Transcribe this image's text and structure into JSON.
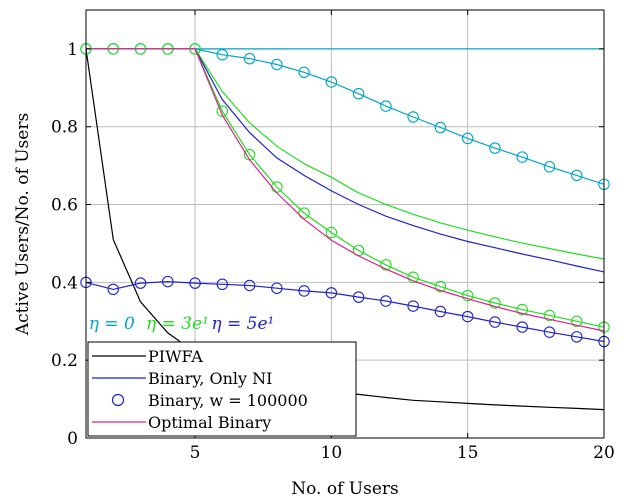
{
  "chart_data": {
    "type": "line",
    "xlabel": "No. of Users",
    "ylabel": "Active Users/No. of Users",
    "xlim": [
      1,
      20
    ],
    "ylim": [
      0,
      1.1
    ],
    "xticks": [
      5,
      10,
      15,
      20
    ],
    "yticks": [
      0,
      0.2,
      0.4,
      0.6,
      0.8,
      1
    ],
    "grid": true,
    "legend_position": "bottom-left",
    "annotations": [
      {
        "text": "η = 0",
        "color": "#00a6c8",
        "x": 1.1,
        "y": 0.28
      },
      {
        "text": "η = 3e¹",
        "color": "#22dd22",
        "x": 3.2,
        "y": 0.28
      },
      {
        "text": "η = 5e¹",
        "color": "#2222cc",
        "x": 5.6,
        "y": 0.28
      }
    ],
    "legend": [
      {
        "label": "PIWFA",
        "color": "#000000",
        "marker": "none"
      },
      {
        "label": "Binary, Only NI",
        "color": "#2222cc",
        "marker": "none"
      },
      {
        "label": "Binary, w = 100000",
        "color": "#2222cc",
        "marker": "circle",
        "line": false
      },
      {
        "label": "Optimal Binary",
        "color": "#e0208a",
        "marker": "none"
      }
    ],
    "series": [
      {
        "group": "PIWFA",
        "color": "#000000",
        "marker": "none",
        "x": [
          1,
          2,
          3,
          4,
          5,
          6,
          7,
          8,
          9,
          10,
          11,
          12,
          13,
          14,
          15,
          16,
          17,
          18,
          19,
          20
        ],
        "y": [
          1.0,
          0.51,
          0.35,
          0.27,
          0.22,
          0.19,
          0.16,
          0.145,
          0.133,
          0.12,
          0.112,
          0.104,
          0.097,
          0.093,
          0.089,
          0.085,
          0.082,
          0.079,
          0.076,
          0.073
        ]
      },
      {
        "group": "Binary, Only NI",
        "color": "#00a6c8",
        "marker": "none",
        "x": [
          1,
          2,
          3,
          4,
          5,
          6,
          7,
          8,
          9,
          10,
          11,
          12,
          13,
          14,
          15,
          16,
          17,
          18,
          19,
          20
        ],
        "y": [
          1,
          1,
          1,
          1,
          1,
          1,
          1,
          1,
          1,
          1,
          1,
          1,
          1,
          1,
          1,
          1,
          1,
          1,
          1,
          1
        ]
      },
      {
        "group": "Binary, Only NI",
        "color": "#22dd22",
        "marker": "none",
        "x": [
          1,
          2,
          3,
          4,
          5,
          6,
          7,
          8,
          9,
          10,
          11,
          12,
          13,
          14,
          15,
          16,
          17,
          18,
          19,
          20
        ],
        "y": [
          1,
          1,
          1,
          1,
          1,
          0.89,
          0.81,
          0.75,
          0.705,
          0.67,
          0.63,
          0.6,
          0.575,
          0.553,
          0.534,
          0.517,
          0.501,
          0.487,
          0.473,
          0.46
        ]
      },
      {
        "group": "Binary, Only NI",
        "color": "#2222cc",
        "marker": "none",
        "x": [
          1,
          2,
          3,
          4,
          5,
          6,
          7,
          8,
          9,
          10,
          11,
          12,
          13,
          14,
          15,
          16,
          17,
          18,
          19,
          20
        ],
        "y": [
          1,
          1,
          1,
          1,
          1,
          0.87,
          0.785,
          0.72,
          0.675,
          0.635,
          0.6,
          0.57,
          0.546,
          0.524,
          0.505,
          0.489,
          0.473,
          0.458,
          0.442,
          0.427
        ]
      },
      {
        "group": "Binary, w = 100000",
        "color": "#00a6c8",
        "marker": "circle",
        "x": [
          1,
          2,
          3,
          4,
          5,
          6,
          7,
          8,
          9,
          10,
          11,
          12,
          13,
          14,
          15,
          16,
          17,
          18,
          19,
          20
        ],
        "y": [
          1,
          1,
          1,
          1,
          1,
          0.985,
          0.975,
          0.96,
          0.94,
          0.915,
          0.885,
          0.853,
          0.825,
          0.798,
          0.77,
          0.745,
          0.722,
          0.697,
          0.675,
          0.652
        ]
      },
      {
        "group": "Binary, w = 100000",
        "color": "#22dd22",
        "marker": "circle",
        "x": [
          1,
          2,
          3,
          4,
          5,
          6,
          7,
          8,
          9,
          10,
          11,
          12,
          13,
          14,
          15,
          16,
          17,
          18,
          19,
          20
        ],
        "y": [
          1,
          1,
          1,
          1,
          1,
          0.84,
          0.728,
          0.645,
          0.578,
          0.528,
          0.482,
          0.445,
          0.413,
          0.389,
          0.366,
          0.347,
          0.33,
          0.315,
          0.3,
          0.285
        ]
      },
      {
        "group": "Binary, w = 100000",
        "color": "#2222cc",
        "marker": "circle",
        "x": [
          1,
          2,
          3,
          4,
          5,
          6,
          7,
          8,
          9,
          10,
          11,
          12,
          13,
          14,
          15,
          16,
          17,
          18,
          19,
          20
        ],
        "y": [
          0.4,
          0.382,
          0.398,
          0.402,
          0.398,
          0.395,
          0.392,
          0.385,
          0.378,
          0.373,
          0.362,
          0.352,
          0.339,
          0.325,
          0.312,
          0.298,
          0.285,
          0.272,
          0.26,
          0.248
        ]
      },
      {
        "group": "Optimal Binary",
        "color": "#e0208a",
        "marker": "none",
        "x": [
          1,
          2,
          3,
          4,
          5,
          6,
          7,
          8,
          9,
          10,
          11,
          12,
          13,
          14,
          15,
          16,
          17,
          18,
          19,
          20
        ],
        "y": [
          1,
          1,
          1,
          1,
          1,
          0.83,
          0.715,
          0.63,
          0.562,
          0.508,
          0.468,
          0.434,
          0.404,
          0.379,
          0.358,
          0.338,
          0.32,
          0.305,
          0.29,
          0.275
        ]
      }
    ]
  }
}
